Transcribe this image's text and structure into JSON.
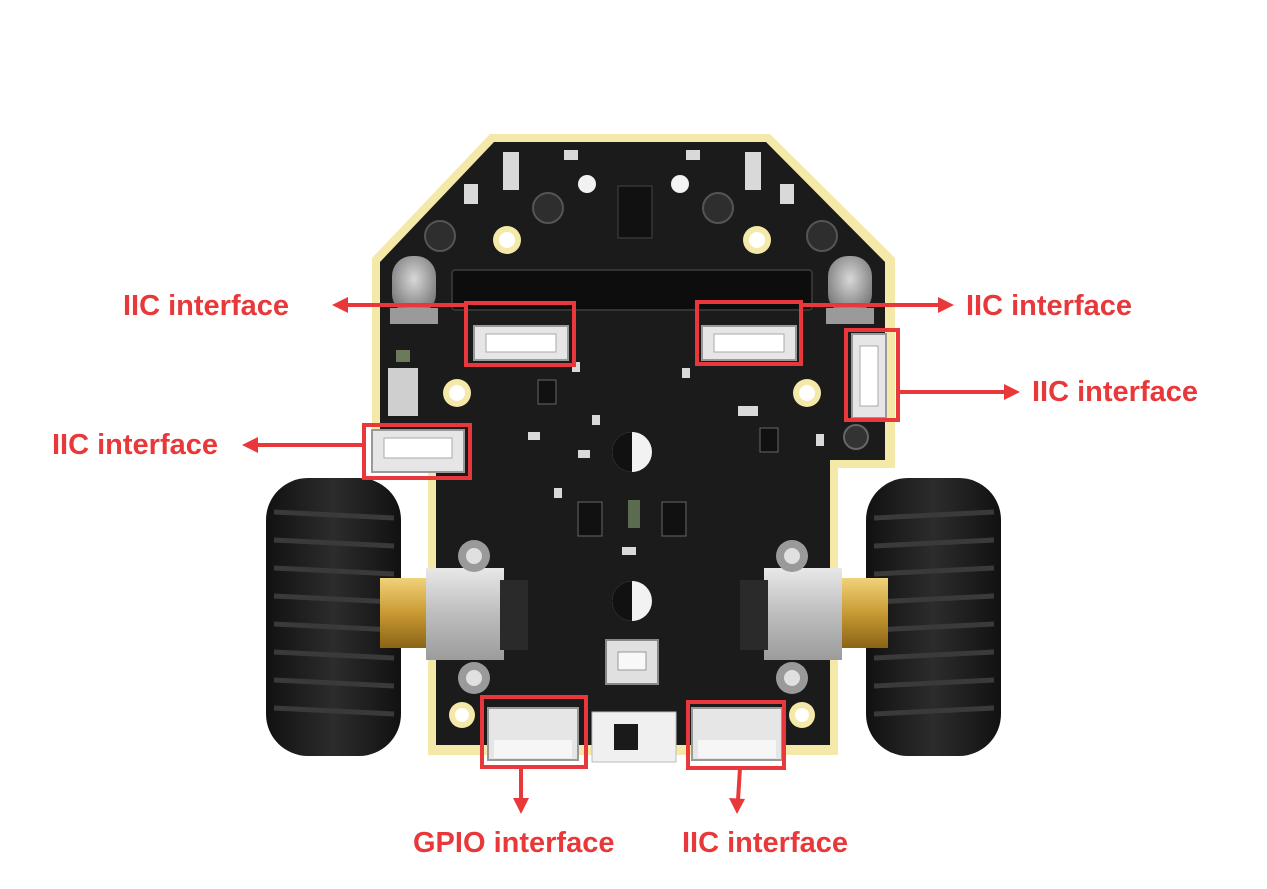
{
  "labels": {
    "top_left": "IIC interface",
    "top_right": "IIC interface",
    "right": "IIC interface",
    "left": "IIC interface",
    "bottom_left": "GPIO interface",
    "bottom_right": "IIC interface"
  },
  "colors": {
    "annotation": "#e8383a",
    "board": "#1b1b1b",
    "board_edge": "#f4e9a8",
    "tire": "#1e1e1e",
    "connector": "#e6e6e6",
    "motor": "#c9c9c9",
    "gear": "#d4a844"
  },
  "icons": {
    "arrow": "arrow-icon",
    "highlight": "highlight-box"
  }
}
